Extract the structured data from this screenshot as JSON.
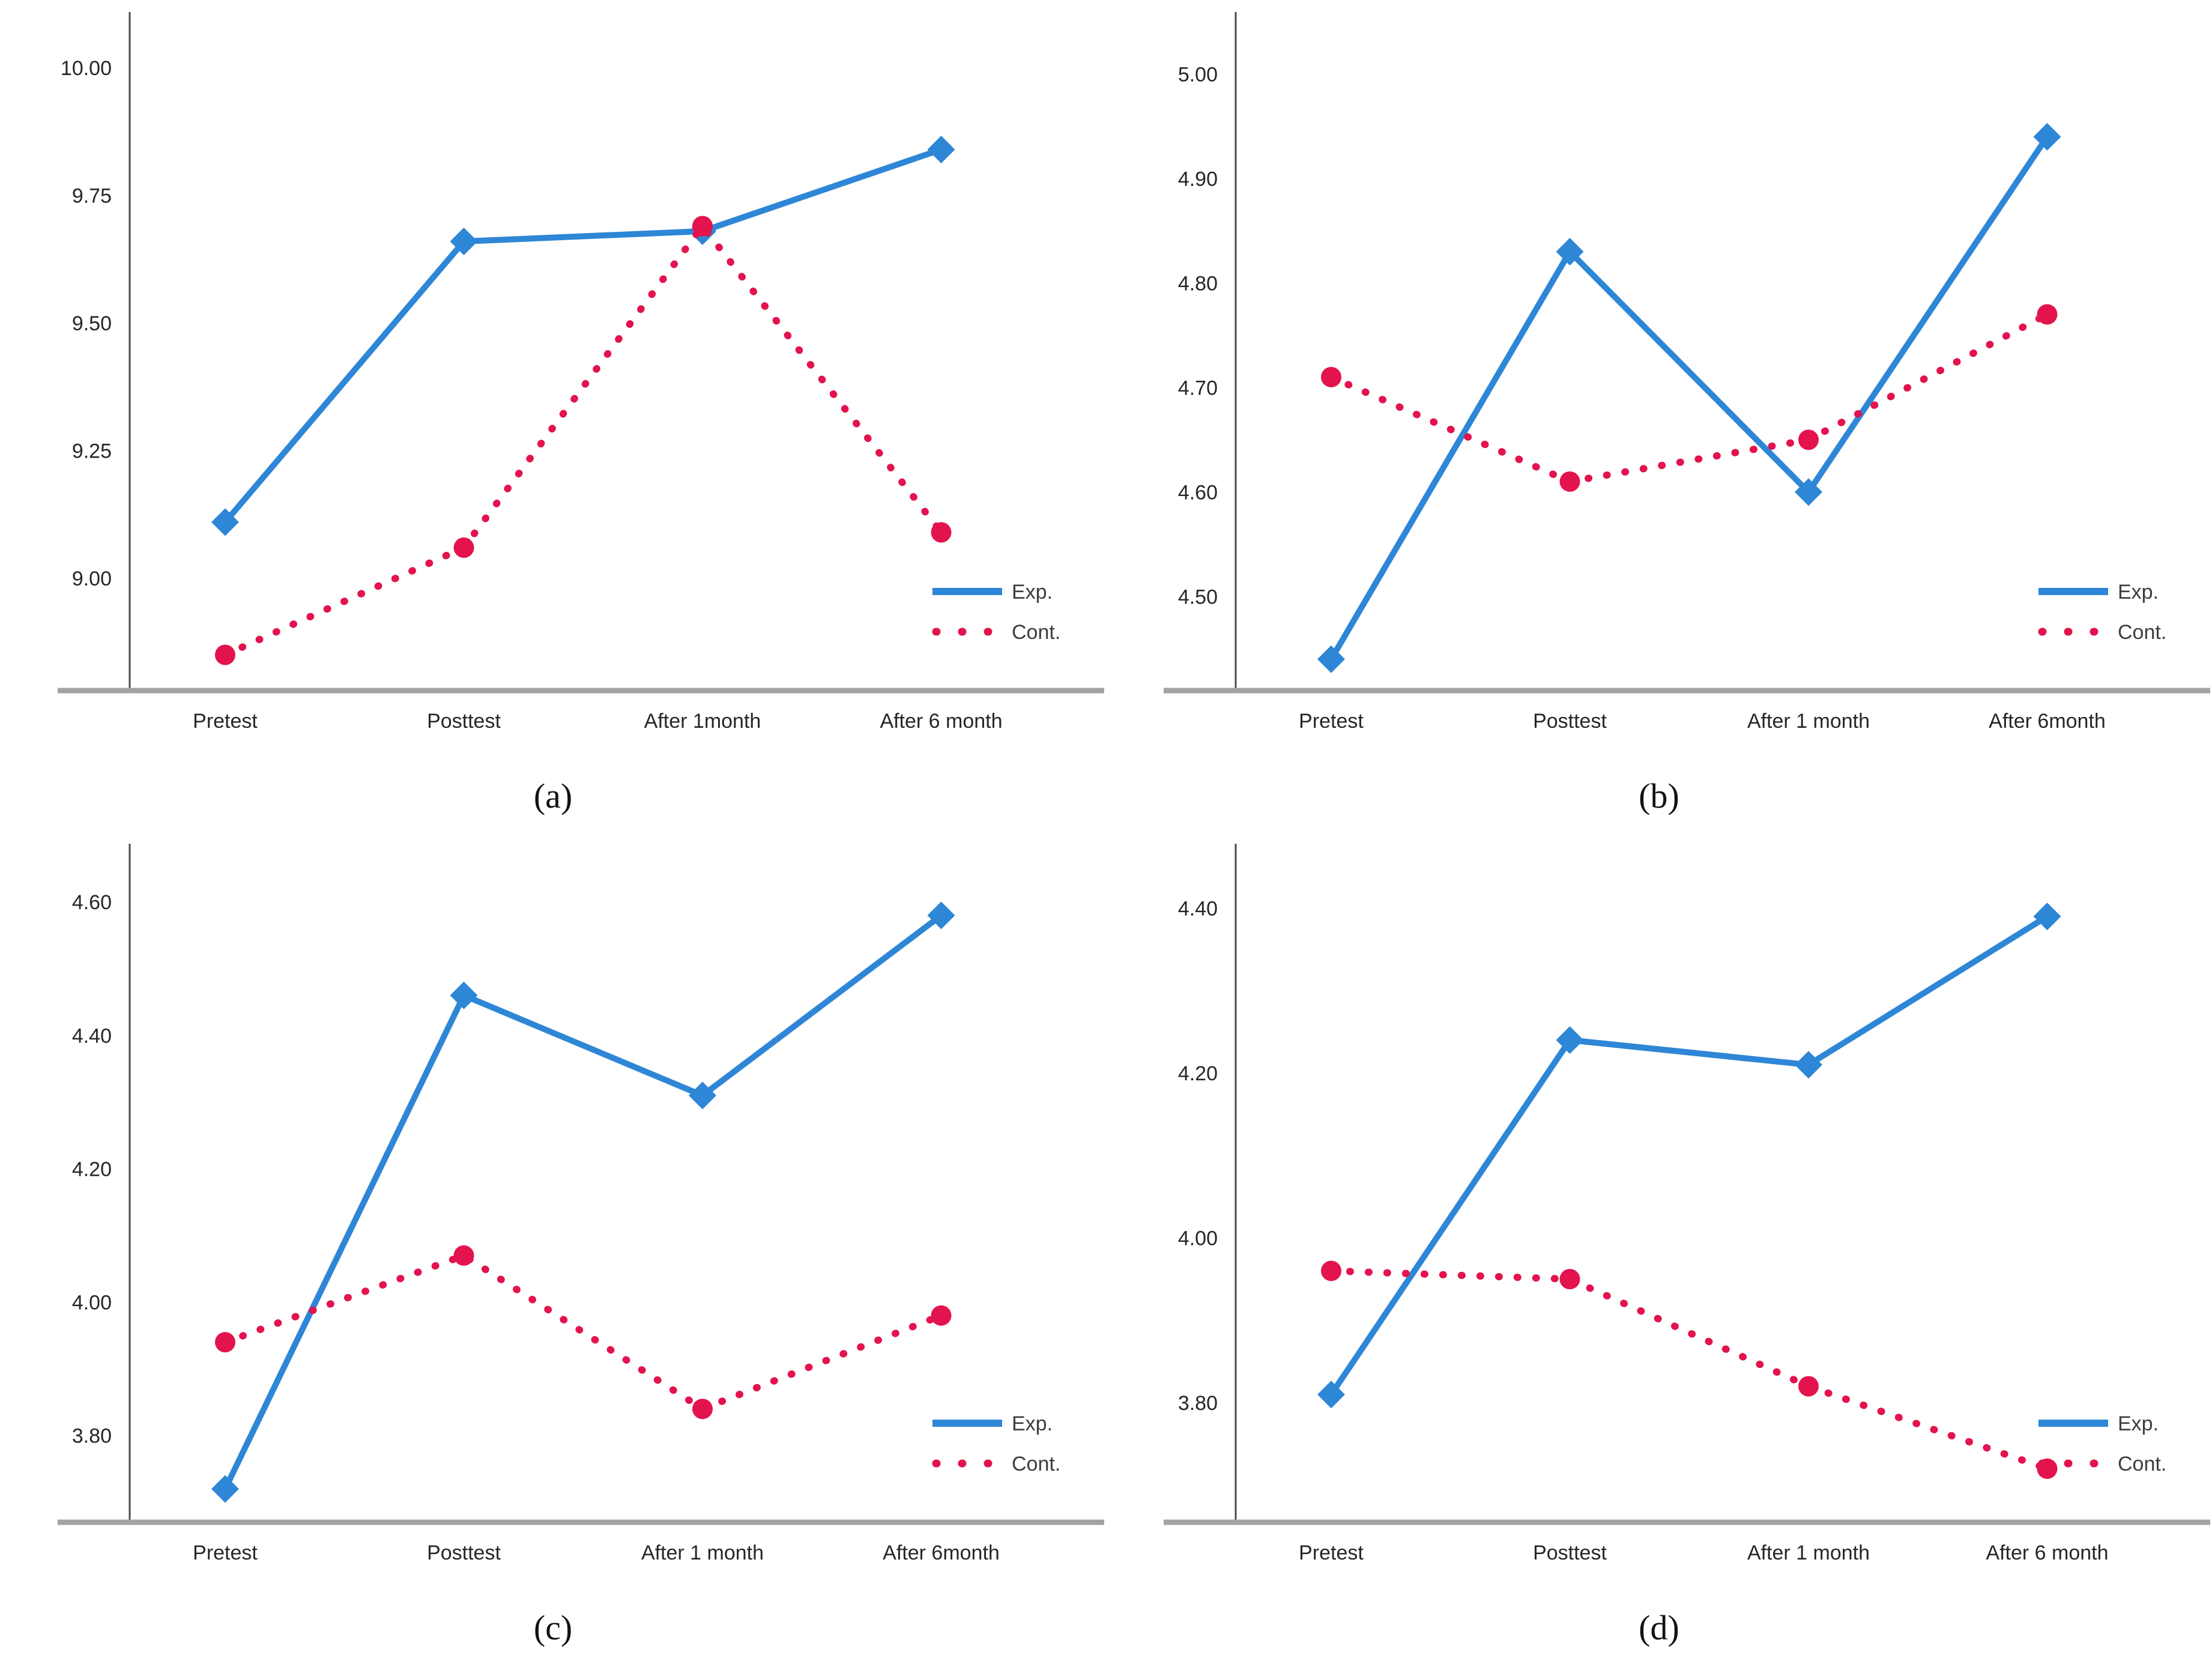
{
  "figure": {
    "background": "#ffffff",
    "captions": {
      "a": "(a)",
      "b": "(b)",
      "c": "(c)",
      "d": "(d)"
    }
  },
  "colors": {
    "exp": "#2E86D6",
    "cont": "#E3134D",
    "y_axis": "#4d4d4d",
    "x_axis": "#a3a3a3",
    "tick_text": "#262626",
    "legend_text": "#3d3d3d"
  },
  "legend": {
    "exp_label": "Exp.",
    "cont_label": "Cont."
  },
  "chart_data": [
    {
      "id": "a",
      "type": "line",
      "caption": "(a)",
      "categories": [
        "Pretest",
        "Posttest",
        "After 1month",
        "After 6 month"
      ],
      "series": [
        {
          "name": "Exp.",
          "style": "solid",
          "marker": "diamond",
          "color_key": "exp",
          "values": [
            9.11,
            9.66,
            9.68,
            9.84
          ]
        },
        {
          "name": "Cont.",
          "style": "dotted",
          "marker": "circle",
          "color_key": "cont",
          "values": [
            8.85,
            9.06,
            9.69,
            9.09
          ]
        }
      ],
      "yticks": [
        "10.00",
        "9.75",
        "9.50",
        "9.25",
        "9.00"
      ],
      "ytick_values": [
        10.0,
        9.75,
        9.5,
        9.25,
        9.0
      ],
      "ylim": [
        8.78,
        10.08
      ],
      "grid": false,
      "legend_position": "bottom-right"
    },
    {
      "id": "b",
      "type": "line",
      "caption": "(b)",
      "categories": [
        "Pretest",
        "Posttest",
        "After 1 month",
        "After 6month"
      ],
      "series": [
        {
          "name": "Exp.",
          "style": "solid",
          "marker": "diamond",
          "color_key": "exp",
          "values": [
            4.44,
            4.83,
            4.6,
            4.94
          ]
        },
        {
          "name": "Cont.",
          "style": "dotted",
          "marker": "circle",
          "color_key": "cont",
          "values": [
            4.71,
            4.61,
            4.65,
            4.77
          ]
        }
      ],
      "yticks": [
        "5.00",
        "4.90",
        "4.80",
        "4.70",
        "4.60",
        "4.50"
      ],
      "ytick_values": [
        5.0,
        4.9,
        4.8,
        4.7,
        4.6,
        4.5
      ],
      "ylim": [
        4.41,
        5.045
      ],
      "grid": false,
      "legend_position": "bottom-right"
    },
    {
      "id": "c",
      "type": "line",
      "caption": "(c)",
      "categories": [
        "Pretest",
        "Posttest",
        "After 1 month",
        "After 6month"
      ],
      "series": [
        {
          "name": "Exp.",
          "style": "solid",
          "marker": "diamond",
          "color_key": "exp",
          "values": [
            3.72,
            4.46,
            4.31,
            4.58
          ]
        },
        {
          "name": "Cont.",
          "style": "dotted",
          "marker": "circle",
          "color_key": "cont",
          "values": [
            3.94,
            4.07,
            3.84,
            3.98
          ]
        }
      ],
      "yticks": [
        "4.60",
        "4.40",
        "4.20",
        "4.00",
        "3.80"
      ],
      "ytick_values": [
        4.6,
        4.4,
        4.2,
        4.0,
        3.8
      ],
      "ylim": [
        3.67,
        4.665
      ],
      "grid": false,
      "legend_position": "bottom-right"
    },
    {
      "id": "d",
      "type": "line",
      "caption": "(d)",
      "categories": [
        "Pretest",
        "Posttest",
        "After 1 month",
        "After 6 month"
      ],
      "series": [
        {
          "name": "Exp.",
          "style": "solid",
          "marker": "diamond",
          "color_key": "exp",
          "values": [
            3.81,
            4.24,
            4.21,
            4.39
          ]
        },
        {
          "name": "Cont.",
          "style": "dotted",
          "marker": "circle",
          "color_key": "cont",
          "values": [
            3.96,
            3.95,
            3.82,
            3.72
          ]
        }
      ],
      "yticks": [
        "4.40",
        "4.20",
        "4.00",
        "3.80"
      ],
      "ytick_values": [
        4.4,
        4.2,
        4.0,
        3.8
      ],
      "ylim": [
        3.655,
        4.46
      ],
      "grid": false,
      "legend_position": "bottom-right"
    }
  ]
}
